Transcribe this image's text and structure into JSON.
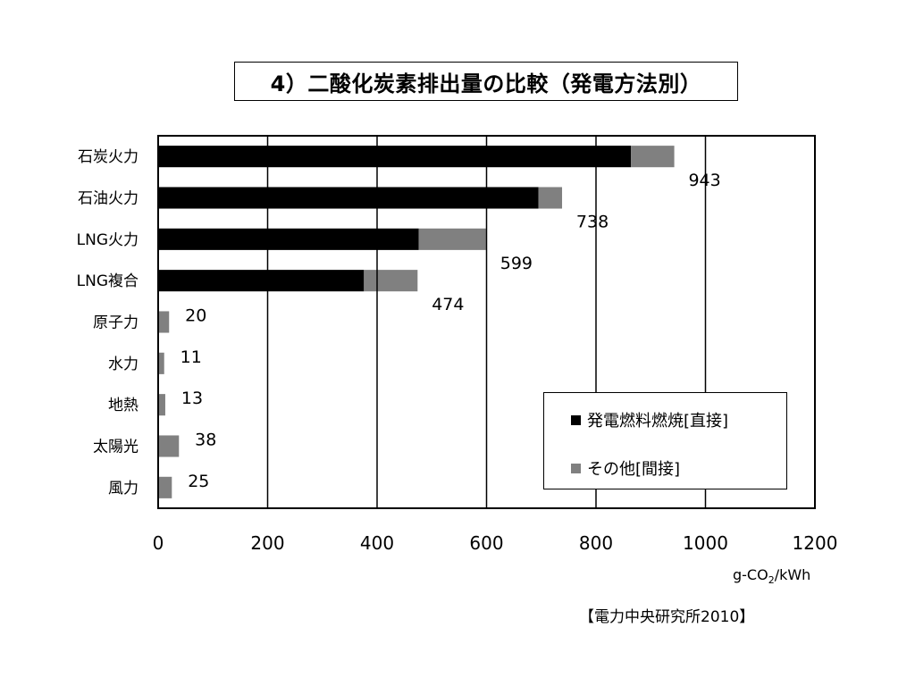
{
  "title": "4）二酸化炭素排出量の比較（発電方法別）",
  "unit": {
    "main": "g-CO",
    "sub": "2",
    "tail": "/kWh"
  },
  "source": "【電力中央研究所2010】",
  "colors": {
    "direct": "#000000",
    "indirect": "#808080",
    "grid": "#000000"
  },
  "chart_data": {
    "type": "bar",
    "orientation": "horizontal",
    "stacked": true,
    "title": "4）二酸化炭素排出量の比較（発電方法別）",
    "xlabel": "g-CO2/kWh",
    "xlim": [
      0,
      1200
    ],
    "xticks": [
      "0",
      "200",
      "400",
      "600",
      "800",
      "1000",
      "1200"
    ],
    "grid": true,
    "legend_position": "bottom-right",
    "categories": [
      "石炭火力",
      "石油火力",
      "LNG火力",
      "LNG複合",
      "原子力",
      "水力",
      "地熱",
      "太陽光",
      "風力"
    ],
    "series": [
      {
        "name": "発電燃料燃焼[直接]",
        "values": [
          864,
          695,
          476,
          376,
          0,
          0,
          0,
          0,
          0
        ]
      },
      {
        "name": "その他[間接]",
        "values": [
          79,
          43,
          123,
          98,
          20,
          11,
          13,
          38,
          25
        ]
      }
    ],
    "totals": [
      943,
      738,
      599,
      474,
      20,
      11,
      13,
      38,
      25
    ],
    "total_labels": [
      "943",
      "738",
      "599",
      "474",
      "20",
      "11",
      "13",
      "38",
      "25"
    ]
  }
}
